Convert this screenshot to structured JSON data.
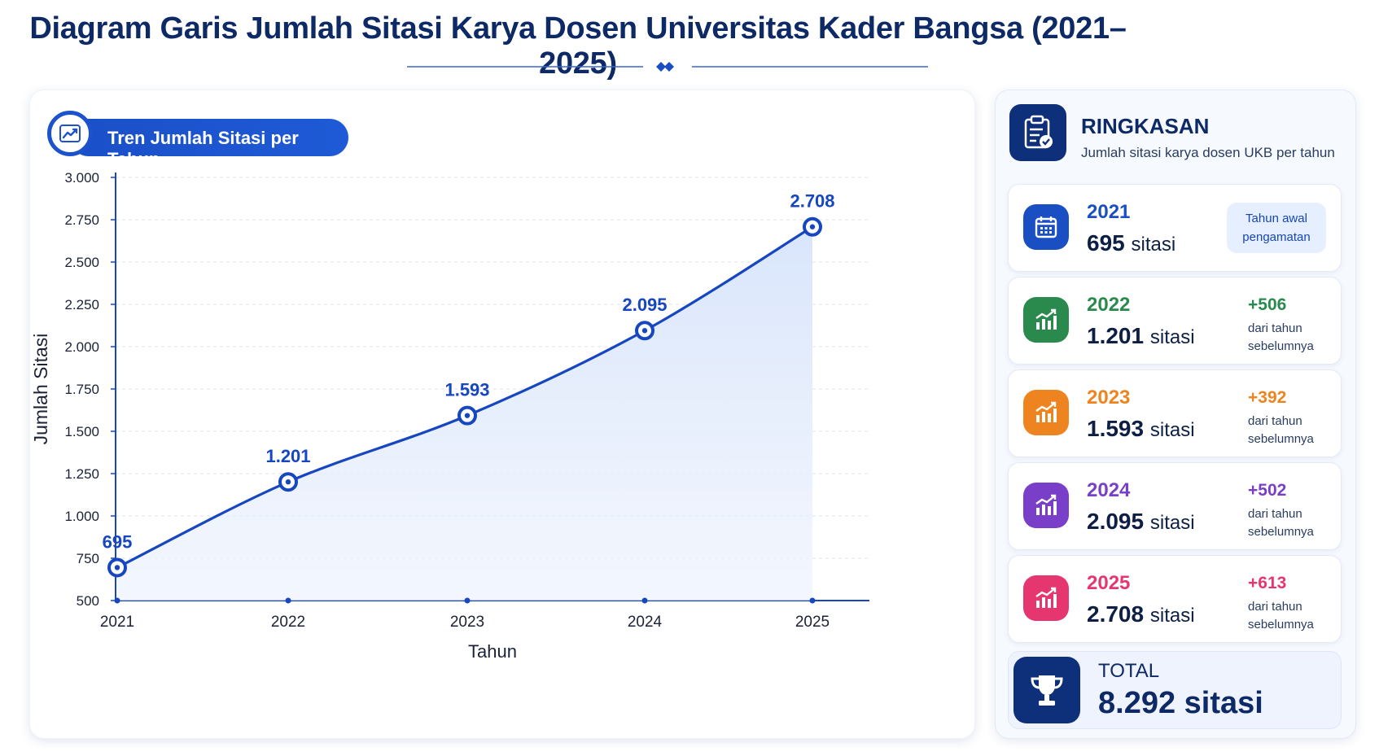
{
  "page": {
    "title": "Diagram Garis Jumlah Sitasi Karya Dosen Universitas Kader Bangsa (2021–2025)"
  },
  "chart_panel": {
    "pill_label": "Tren Jumlah Sitasi per Tahun",
    "pill_icon": "trend-up-icon"
  },
  "chart_data": {
    "type": "line",
    "title": "",
    "xlabel": "Tahun",
    "ylabel": "Jumlah Sitasi",
    "categories": [
      "2021",
      "2022",
      "2023",
      "2024",
      "2025"
    ],
    "values": [
      695,
      1201,
      1593,
      2095,
      2708
    ],
    "data_labels": [
      "695",
      "1.201",
      "1.593",
      "2.095",
      "2.708"
    ],
    "ylim": [
      500,
      3000
    ],
    "yticks": [
      500,
      750,
      1000,
      1250,
      1500,
      1750,
      2000,
      2250,
      2500,
      2750,
      3000
    ],
    "ytick_labels": [
      "500",
      "750",
      "1.000",
      "1.250",
      "1.500",
      "1.750",
      "2.000",
      "2.250",
      "2.500",
      "2.750",
      "3.000"
    ],
    "grid": true,
    "area_fill": true,
    "line_color": "#1646c0"
  },
  "summary": {
    "title": "RINGKASAN",
    "subtitle": "Jumlah sitasi karya dosen UKB per tahun",
    "icon": "clipboard-check-icon",
    "unit": "sitasi",
    "items": [
      {
        "year": "2021",
        "value": "695",
        "badge": "Tahun awal pengamatan",
        "delta": "",
        "note": "",
        "color": "#1a4fc4",
        "icon": "calendar-icon"
      },
      {
        "year": "2022",
        "value": "1.201",
        "badge": "",
        "delta": "+506",
        "note": "dari tahun sebelumnya",
        "color": "#2a8a4e",
        "icon": "growth-chart-icon"
      },
      {
        "year": "2023",
        "value": "1.593",
        "badge": "",
        "delta": "+392",
        "note": "dari tahun sebelumnya",
        "color": "#ee8420",
        "icon": "growth-chart-icon"
      },
      {
        "year": "2024",
        "value": "2.095",
        "badge": "",
        "delta": "+502",
        "note": "dari tahun sebelumnya",
        "color": "#7a3fc8",
        "icon": "growth-chart-icon"
      },
      {
        "year": "2025",
        "value": "2.708",
        "badge": "",
        "delta": "+613",
        "note": "dari tahun sebelumnya",
        "color": "#e5366f",
        "icon": "growth-chart-icon"
      }
    ],
    "total": {
      "label": "TOTAL",
      "value": "8.292 sitasi",
      "icon": "trophy-icon"
    }
  }
}
